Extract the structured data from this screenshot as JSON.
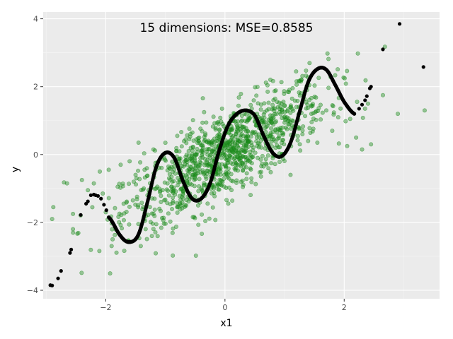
{
  "chart_data": {
    "type": "scatter",
    "title": "15 dimensions: MSE=0.8585",
    "xlabel": "x1",
    "ylabel": "y",
    "xlim": [
      -3.05,
      3.6
    ],
    "ylim": [
      -4.25,
      4.2
    ],
    "x_ticks": [
      -2,
      0,
      2
    ],
    "x_tick_labels": [
      "−2",
      "0",
      "2"
    ],
    "y_ticks": [
      -4,
      -2,
      0,
      2,
      4
    ],
    "y_tick_labels": [
      "−4",
      "−2",
      "0",
      "2",
      "4"
    ],
    "grid": true,
    "legend": "none",
    "colors": {
      "panel_background": "#ebebeb",
      "grid_major": "#ffffff",
      "grid_minor": "#f5f5f5",
      "observed": "#1a8a1a",
      "prediction": "#000000"
    },
    "series": [
      {
        "kind": "observed-scatter",
        "description_points": "noisy linear cloud around y = x",
        "sample_points": [
          [
            -2.9,
            -1.9
          ],
          [
            -2.88,
            -1.55
          ],
          [
            -2.7,
            -0.82
          ],
          [
            -2.65,
            -0.85
          ],
          [
            -2.55,
            -1.75
          ],
          [
            -2.55,
            -2.2
          ],
          [
            -2.4,
            -0.75
          ],
          [
            -2.3,
            -1.05
          ],
          [
            -2.2,
            -0.85
          ],
          [
            -2.1,
            -0.5
          ],
          [
            -2.05,
            -1.15
          ],
          [
            -2.0,
            -1.7
          ],
          [
            -1.95,
            -0.45
          ],
          [
            -1.8,
            -0.95
          ],
          [
            -1.75,
            -0.3
          ],
          [
            -1.7,
            -1.45
          ],
          [
            -1.6,
            -0.2
          ],
          [
            -1.5,
            -0.6
          ],
          [
            -1.45,
            0.35
          ],
          [
            -1.3,
            -1.2
          ],
          [
            -1.2,
            0.15
          ],
          [
            -1.1,
            -1.6
          ],
          [
            -1.0,
            0.05
          ],
          [
            -0.9,
            -0.95
          ],
          [
            -0.8,
            0.55
          ],
          [
            -0.7,
            -1.3
          ],
          [
            -0.6,
            0.45
          ],
          [
            -0.45,
            -1.5
          ],
          [
            -0.35,
            1.25
          ],
          [
            -0.2,
            -0.9
          ],
          [
            -0.1,
            0.6
          ],
          [
            0.0,
            -0.3
          ],
          [
            0.15,
            1.0
          ],
          [
            0.3,
            -0.25
          ],
          [
            0.45,
            1.35
          ],
          [
            0.55,
            -0.1
          ],
          [
            0.7,
            1.3
          ],
          [
            0.85,
            0.2
          ],
          [
            1.0,
            1.45
          ],
          [
            1.1,
            -0.6
          ],
          [
            1.2,
            1.4
          ],
          [
            1.3,
            0.6
          ],
          [
            1.45,
            1.2
          ],
          [
            1.55,
            0.35
          ],
          [
            1.7,
            1.3
          ],
          [
            1.8,
            0.7
          ],
          [
            1.9,
            1.1
          ],
          [
            2.05,
            0.25
          ],
          [
            2.1,
            1.05
          ],
          [
            2.2,
            0.5
          ],
          [
            2.3,
            0.15
          ],
          [
            2.35,
            1.35
          ],
          [
            2.4,
            1.5
          ],
          [
            2.45,
            0.3
          ],
          [
            2.65,
            1.75
          ],
          [
            2.9,
            1.2
          ],
          [
            3.35,
            1.3
          ]
        ]
      },
      {
        "kind": "prediction-points",
        "points": [
          [
            -2.93,
            -3.85
          ],
          [
            -2.9,
            -3.86
          ],
          [
            -2.8,
            -3.65
          ],
          [
            -2.75,
            -3.43
          ],
          [
            -2.6,
            -2.9
          ],
          [
            -2.58,
            -2.8
          ],
          [
            -2.42,
            -1.78
          ],
          [
            -2.33,
            -1.45
          ],
          [
            -2.3,
            -1.38
          ],
          [
            -2.25,
            -1.2
          ],
          [
            -2.2,
            -1.18
          ],
          [
            -2.17,
            -1.2
          ],
          [
            -2.13,
            -1.22
          ],
          [
            -2.08,
            -1.3
          ],
          [
            -2.03,
            -1.48
          ],
          [
            -1.99,
            -1.64
          ],
          [
            -1.95,
            -1.85
          ],
          [
            2.17,
            1.2
          ],
          [
            2.25,
            1.35
          ],
          [
            2.3,
            1.47
          ],
          [
            2.35,
            1.6
          ],
          [
            2.38,
            1.72
          ],
          [
            2.43,
            1.95
          ],
          [
            2.45,
            2.0
          ],
          [
            2.65,
            3.1
          ],
          [
            2.93,
            3.85
          ],
          [
            3.33,
            2.58
          ]
        ],
        "curve_x_range": [
          -1.95,
          2.17
        ],
        "curve_samples": [
          [
            -1.95,
            -1.85
          ],
          [
            -1.75,
            -2.4
          ],
          [
            -1.6,
            -2.58
          ],
          [
            -1.45,
            -2.35
          ],
          [
            -1.3,
            -1.4
          ],
          [
            -1.15,
            -0.35
          ],
          [
            -1.0,
            0.05
          ],
          [
            -0.85,
            -0.1
          ],
          [
            -0.7,
            -0.8
          ],
          [
            -0.55,
            -1.3
          ],
          [
            -0.4,
            -1.3
          ],
          [
            -0.25,
            -0.85
          ],
          [
            -0.1,
            0.1
          ],
          [
            0.05,
            0.85
          ],
          [
            0.2,
            1.2
          ],
          [
            0.35,
            1.3
          ],
          [
            0.5,
            1.15
          ],
          [
            0.65,
            0.55
          ],
          [
            0.8,
            0.05
          ],
          [
            0.95,
            -0.05
          ],
          [
            1.1,
            0.35
          ],
          [
            1.25,
            1.25
          ],
          [
            1.4,
            2.15
          ],
          [
            1.55,
            2.52
          ],
          [
            1.7,
            2.5
          ],
          [
            1.85,
            2.05
          ],
          [
            2.0,
            1.55
          ],
          [
            2.17,
            1.2
          ]
        ]
      }
    ]
  }
}
